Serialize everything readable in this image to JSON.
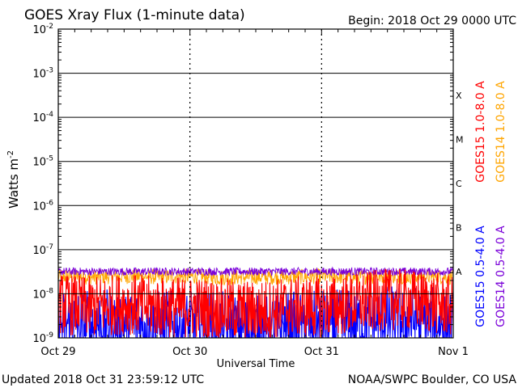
{
  "header": {
    "title": "GOES Xray Flux (1-minute data)",
    "begin": "Begin:  2018 Oct 29 0000 UTC"
  },
  "footer": {
    "updated": "Updated 2018 Oct 31 23:59:12 UTC",
    "credit": "NOAA/SWPC Boulder, CO USA"
  },
  "colors": {
    "goes15_long": "#ff0000",
    "goes14_long": "#ffa500",
    "goes15_short": "#0000ff",
    "goes14_short": "#7a00d9",
    "grid": "#000000",
    "background": "#ffffff"
  },
  "chart_data": {
    "type": "line",
    "title": "GOES Xray Flux (1-minute data)",
    "xlabel": "Universal Time",
    "ylabel": "Watts m-2",
    "ylabel_base": "Watts m",
    "ylabel_exp": "-2",
    "yscale": "log",
    "ylim": [
      1e-09,
      0.01
    ],
    "xlim_days": [
      0,
      3
    ],
    "x_tick_labels": [
      "Oct 29",
      "Oct 30",
      "Oct 31",
      "Nov 1"
    ],
    "y_ticks": [
      {
        "base": "10",
        "exp": "-2"
      },
      {
        "base": "10",
        "exp": "-3"
      },
      {
        "base": "10",
        "exp": "-4"
      },
      {
        "base": "10",
        "exp": "-5"
      },
      {
        "base": "10",
        "exp": "-6"
      },
      {
        "base": "10",
        "exp": "-7"
      },
      {
        "base": "10",
        "exp": "-8"
      },
      {
        "base": "10",
        "exp": "-9"
      }
    ],
    "flare_classes": [
      {
        "label": "X",
        "value": 0.0001
      },
      {
        "label": "M",
        "value": 1e-05
      },
      {
        "label": "C",
        "value": 1e-06
      },
      {
        "label": "B",
        "value": 1e-07
      },
      {
        "label": "A",
        "value": 1e-08
      }
    ],
    "legend_right": [
      {
        "name": "GOES15 1.0-8.0 A",
        "color": "#ff0000"
      },
      {
        "name": "GOES14 1.0-8.0 A",
        "color": "#ffa500"
      }
    ],
    "legend_bottom": [
      {
        "name": "GOES15 0.5-4.0 A",
        "color": "#0000ff"
      },
      {
        "name": "GOES14 0.5-4.0 A",
        "color": "#7a00d9"
      }
    ],
    "series": [
      {
        "name": "GOES15 1.0-8.0 A",
        "color": "#ff0000",
        "x": [
          0,
          0.25,
          0.5,
          0.75,
          1.0,
          1.25,
          1.5,
          1.75,
          2.0,
          2.25,
          2.5,
          2.75,
          3.0
        ],
        "values": [
          6e-09,
          5e-09,
          6e-09,
          5e-09,
          5e-09,
          4.5e-09,
          4e-09,
          5e-09,
          5e-09,
          6e-09,
          7.5e-09,
          7e-09,
          5e-09
        ]
      },
      {
        "name": "GOES14 1.0-8.0 A",
        "color": "#ffa500",
        "x": [
          0,
          0.25,
          0.5,
          0.75,
          1.0,
          1.25,
          1.5,
          1.75,
          2.0,
          2.25,
          2.5,
          2.75,
          3.0
        ],
        "values": [
          2.5e-08,
          2.4e-08,
          2.5e-08,
          2.4e-08,
          2.5e-08,
          2.3e-08,
          2.4e-08,
          2.4e-08,
          2.5e-08,
          2.4e-08,
          2.5e-08,
          2.5e-08,
          2.4e-08
        ]
      },
      {
        "name": "GOES15 0.5-4.0 A",
        "color": "#0000ff",
        "x": [
          0,
          0.25,
          0.5,
          0.75,
          1.0,
          1.25,
          1.5,
          1.75,
          2.0,
          2.25,
          2.5,
          2.75,
          3.0
        ],
        "values": [
          2e-09,
          2e-09,
          2e-09,
          2e-09,
          1.8e-09,
          1.8e-09,
          1.5e-09,
          1.8e-09,
          2e-09,
          2e-09,
          2.5e-09,
          2.5e-09,
          2e-09
        ]
      },
      {
        "name": "GOES14 0.5-4.0 A",
        "color": "#7a00d9",
        "x": [
          0,
          0.25,
          0.5,
          0.75,
          1.0,
          1.25,
          1.5,
          1.75,
          2.0,
          2.25,
          2.5,
          2.75,
          3.0
        ],
        "values": [
          3.2e-08,
          3.2e-08,
          3.2e-08,
          3.2e-08,
          3.2e-08,
          3.2e-08,
          3.2e-08,
          3.2e-08,
          3.2e-08,
          3.2e-08,
          3.2e-08,
          3.2e-08,
          3.2e-08
        ]
      }
    ],
    "grid": true,
    "legend": "right"
  }
}
